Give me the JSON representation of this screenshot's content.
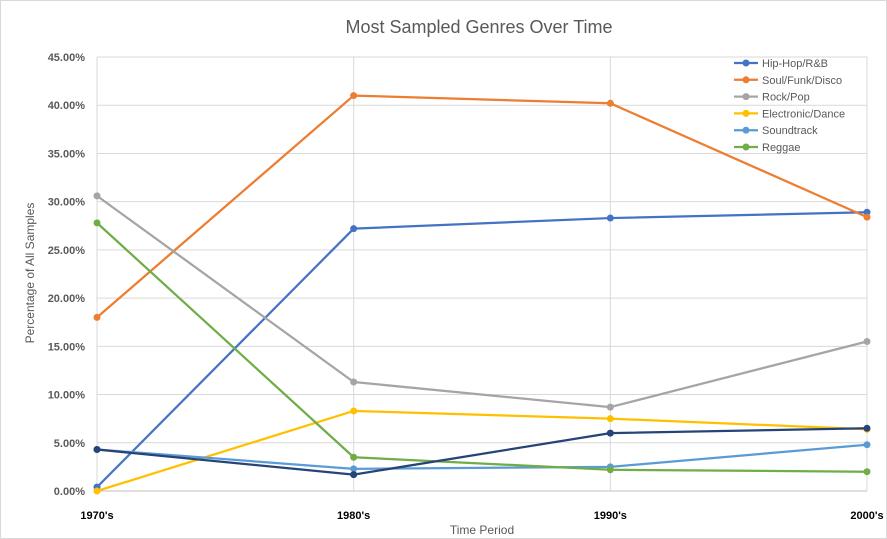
{
  "chart_data": {
    "type": "line",
    "title": "Most Sampled Genres Over Time",
    "xlabel": "Time Period",
    "ylabel": "Percentage of All Samples",
    "categories": [
      "1970's",
      "1980's",
      "1990's",
      "2000's"
    ],
    "ylim": [
      0,
      45
    ],
    "yticks": [
      "0.00%",
      "5.00%",
      "10.00%",
      "15.00%",
      "20.00%",
      "25.00%",
      "30.00%",
      "35.00%",
      "40.00%",
      "45.00%"
    ],
    "grid": true,
    "legend_position": "top-right",
    "series": [
      {
        "name": "Hip-Hop/R&B",
        "color": "#4472c4",
        "values": [
          0.4,
          27.2,
          28.3,
          28.9
        ]
      },
      {
        "name": "Soul/Funk/Disco",
        "color": "#ed7d31",
        "values": [
          18.0,
          41.0,
          40.2,
          28.4
        ]
      },
      {
        "name": "Rock/Pop",
        "color": "#a5a5a5",
        "values": [
          30.6,
          11.3,
          8.7,
          15.5
        ]
      },
      {
        "name": "Electronic/Dance",
        "color": "#ffc000",
        "values": [
          0.0,
          8.3,
          7.5,
          6.4
        ]
      },
      {
        "name": "Soundtrack",
        "color": "#5b9bd5",
        "values": [
          4.3,
          2.3,
          2.5,
          4.8
        ]
      },
      {
        "name": "Reggae",
        "color": "#70ad47",
        "values": [
          27.8,
          3.5,
          2.2,
          2.0
        ]
      },
      {
        "name": "",
        "color": "#264478",
        "values": [
          4.3,
          1.7,
          6.0,
          6.5
        ],
        "in_legend": false
      }
    ]
  }
}
